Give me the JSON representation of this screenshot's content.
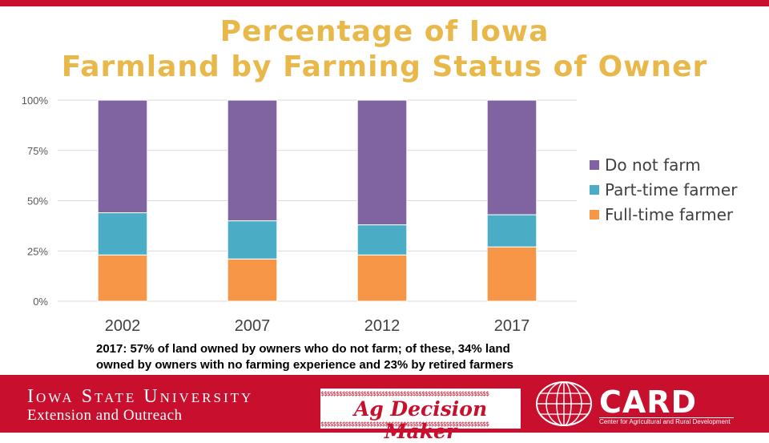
{
  "title_line1": "Percentage of Iowa",
  "title_line2": "Farmland by Farming Status of Owner",
  "chart_data": {
    "type": "bar",
    "stacked": true,
    "categories": [
      "2002",
      "2007",
      "2012",
      "2017"
    ],
    "series": [
      {
        "name": "Full-time farmer",
        "color": "#f79646",
        "values": [
          23,
          21,
          23,
          27
        ]
      },
      {
        "name": "Part-time farmer",
        "color": "#4bacc6",
        "values": [
          21,
          19,
          15,
          16
        ]
      },
      {
        "name": "Do not farm",
        "color": "#8064a2",
        "values": [
          56,
          60,
          62,
          57
        ]
      }
    ],
    "yticks": [
      "0%",
      "25%",
      "50%",
      "75%",
      "100%"
    ],
    "ylim": [
      0,
      100
    ],
    "legend_order": [
      "Do not farm",
      "Part-time farmer",
      "Full-time farmer"
    ],
    "legend_position": "right",
    "grid": true
  },
  "caption_line1": "2017: 57% of land owned by owners who do not farm; of these, 34% land",
  "caption_line2": "owned by owners with no farming experience and 23% by retired farmers",
  "footer": {
    "isu_line1": "Iowa State University",
    "isu_line2": "Extension and Outreach",
    "agdm_label": "Ag Decision Maker",
    "agdm_pattern": "$$$$$$$$$$$$$$$$$$$$$$$$$$$$$$$$$$$$$$$$$$$$$$$$$$$$$$$",
    "card_label": "CARD",
    "card_subtitle": "Center for Agricultural and Rural Development",
    "brand_color": "#c8102e"
  }
}
